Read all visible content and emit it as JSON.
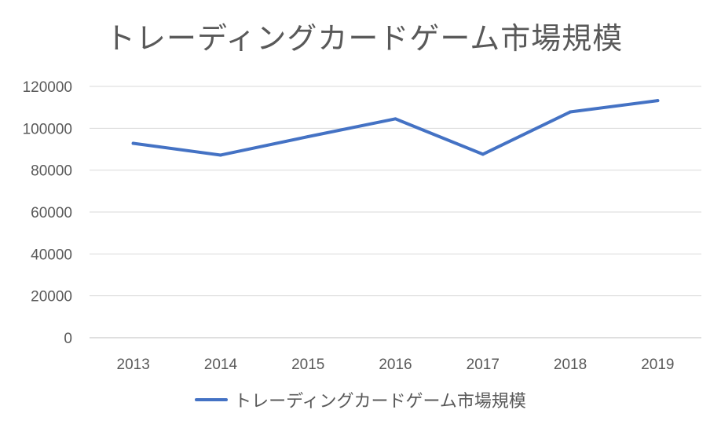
{
  "chart_data": {
    "type": "line",
    "title": "トレーディングカードゲーム市場規模",
    "categories": [
      "2013",
      "2014",
      "2015",
      "2016",
      "2017",
      "2018",
      "2019"
    ],
    "series": [
      {
        "name": "トレーディングカードゲーム市場規模",
        "values": [
          92800,
          87200,
          96000,
          104500,
          87600,
          107800,
          113200
        ],
        "color": "#4472C4"
      }
    ],
    "yticks": [
      "0",
      "20000",
      "40000",
      "60000",
      "80000",
      "100000",
      "120000"
    ],
    "ylim": [
      0,
      120000
    ],
    "grid": true,
    "legend": "bottom"
  }
}
